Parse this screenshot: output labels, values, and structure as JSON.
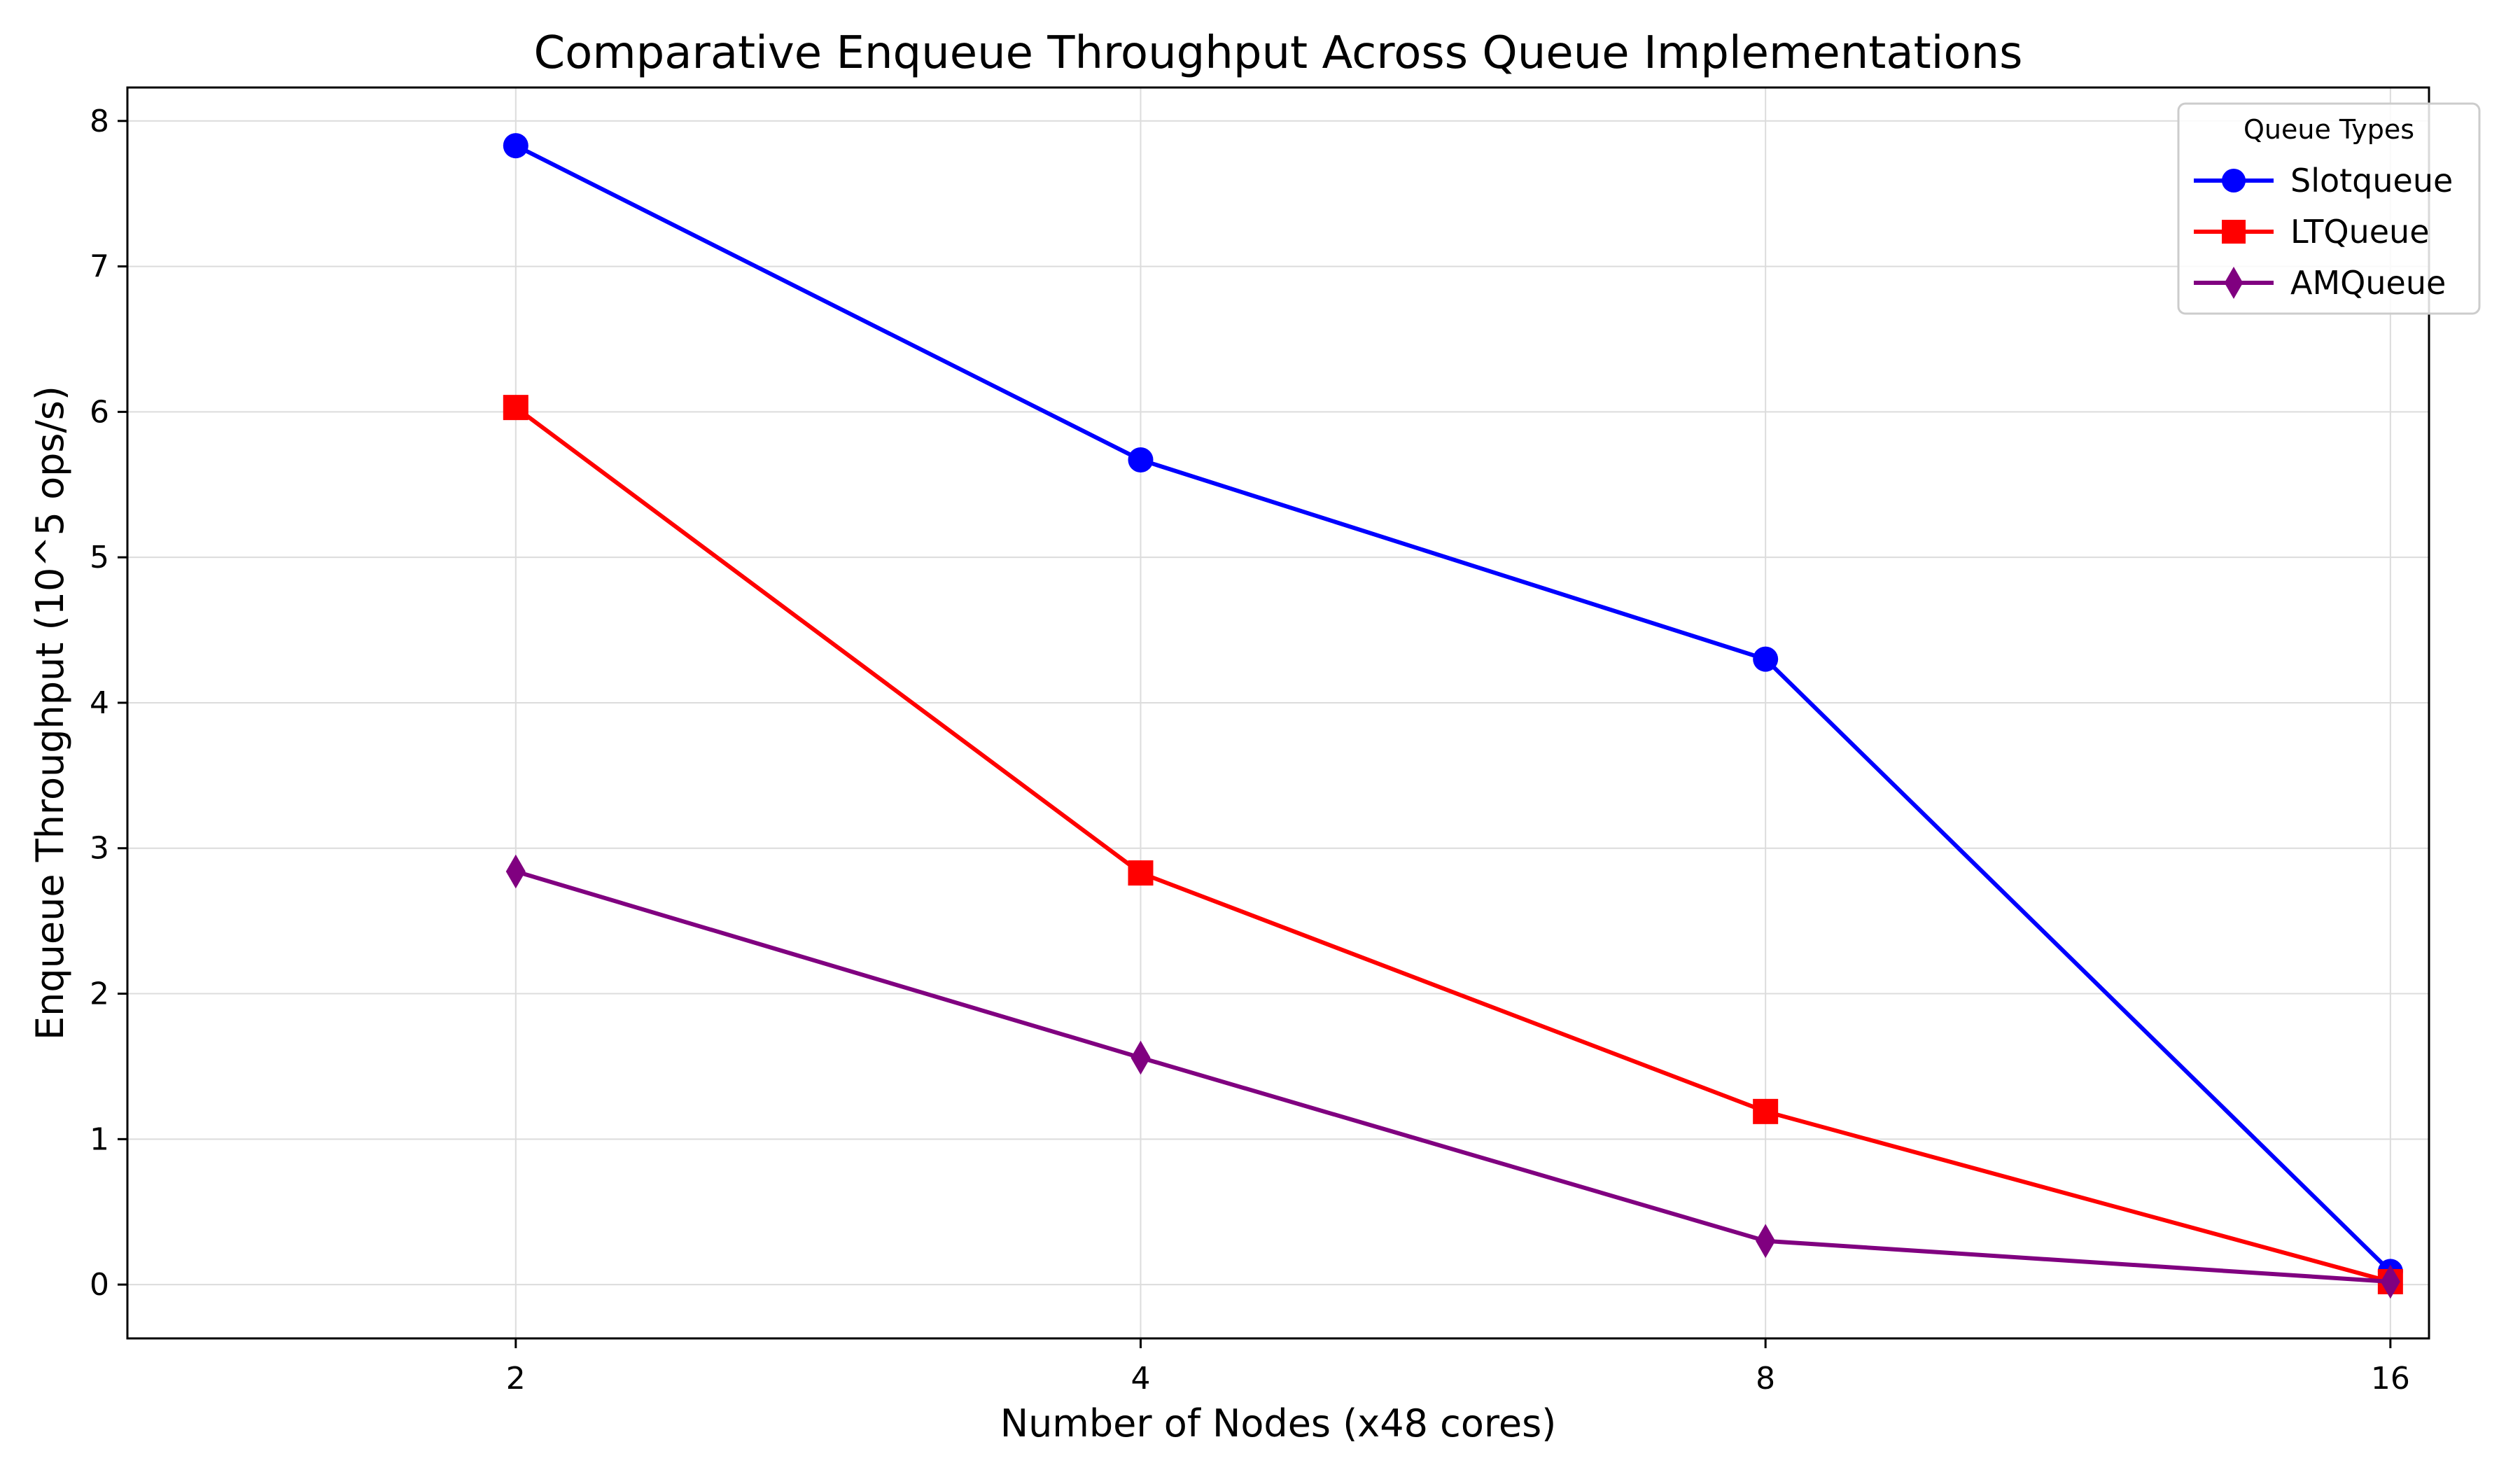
{
  "chart_data": {
    "type": "line",
    "title": "Comparative Enqueue Throughput Across Queue Implementations",
    "xlabel": "Number of Nodes (x48 cores)",
    "ylabel": "Enqueue Throughput (10^5 ops/s)",
    "x": [
      2,
      4,
      8,
      16
    ],
    "x_tick_labels": [
      "2",
      "4",
      "8",
      "16"
    ],
    "xlim": [
      1.3,
      16.7
    ],
    "ylim": [
      -0.37,
      8.23
    ],
    "y_ticks": [
      0,
      1,
      2,
      3,
      4,
      5,
      6,
      7,
      8
    ],
    "grid": true,
    "legend": {
      "title": "Queue Types",
      "position": "top-right"
    },
    "series": [
      {
        "name": "Slotqueue",
        "color": "#0000ff",
        "marker": "circle",
        "values": [
          7.83,
          5.67,
          4.3,
          0.09
        ]
      },
      {
        "name": "LTQueue",
        "color": "#ff0000",
        "marker": "square",
        "values": [
          6.03,
          2.83,
          1.19,
          0.02
        ]
      },
      {
        "name": "AMQueue",
        "color": "#800080",
        "marker": "diamond",
        "values": [
          2.84,
          1.56,
          0.3,
          0.02
        ]
      }
    ]
  }
}
